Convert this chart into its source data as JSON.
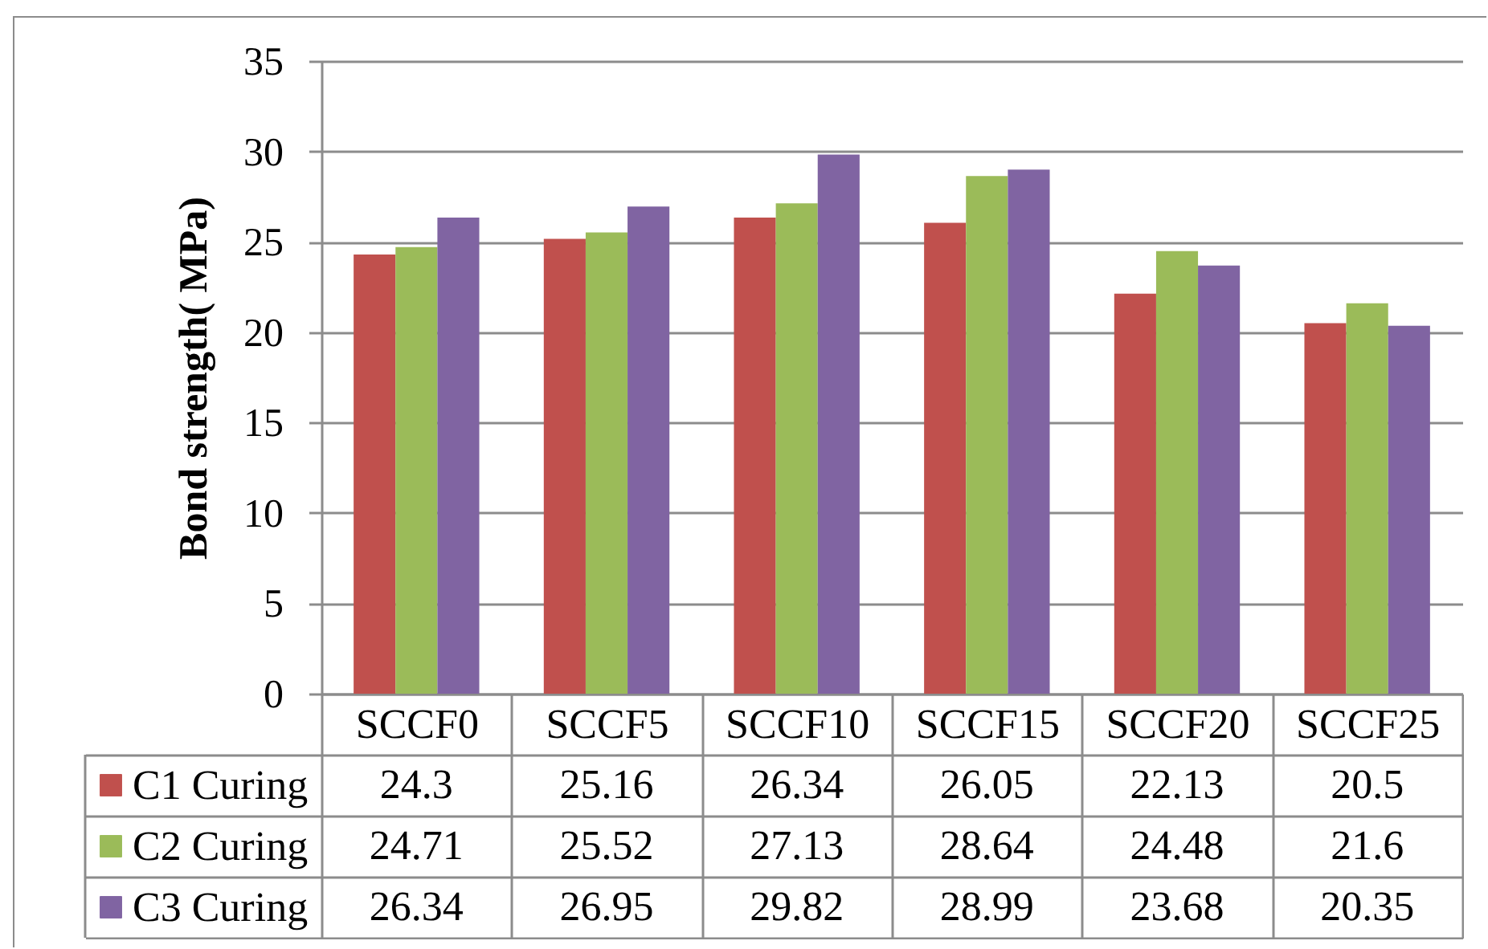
{
  "chart_data": {
    "type": "bar",
    "ylabel": "Bond strength( MPa)",
    "categories": [
      "SCCF0",
      "SCCF5",
      "SCCF10",
      "SCCF15",
      "SCCF20",
      "SCCF25"
    ],
    "series": [
      {
        "name": "C1 Curing",
        "color": "#c0504d",
        "values": [
          24.3,
          25.16,
          26.34,
          26.05,
          22.13,
          20.5
        ]
      },
      {
        "name": "C2 Curing",
        "color": "#9bbb59",
        "values": [
          24.71,
          25.52,
          27.13,
          28.64,
          24.48,
          21.6
        ]
      },
      {
        "name": "C3 Curing",
        "color": "#8064a2",
        "values": [
          26.34,
          26.95,
          29.82,
          28.99,
          23.68,
          20.35
        ]
      }
    ],
    "ylim": [
      0,
      35
    ],
    "yticks": [
      0,
      5,
      10,
      15,
      20,
      25,
      30,
      35
    ],
    "grid": "y",
    "legend": "bottom",
    "data_labels": true
  }
}
